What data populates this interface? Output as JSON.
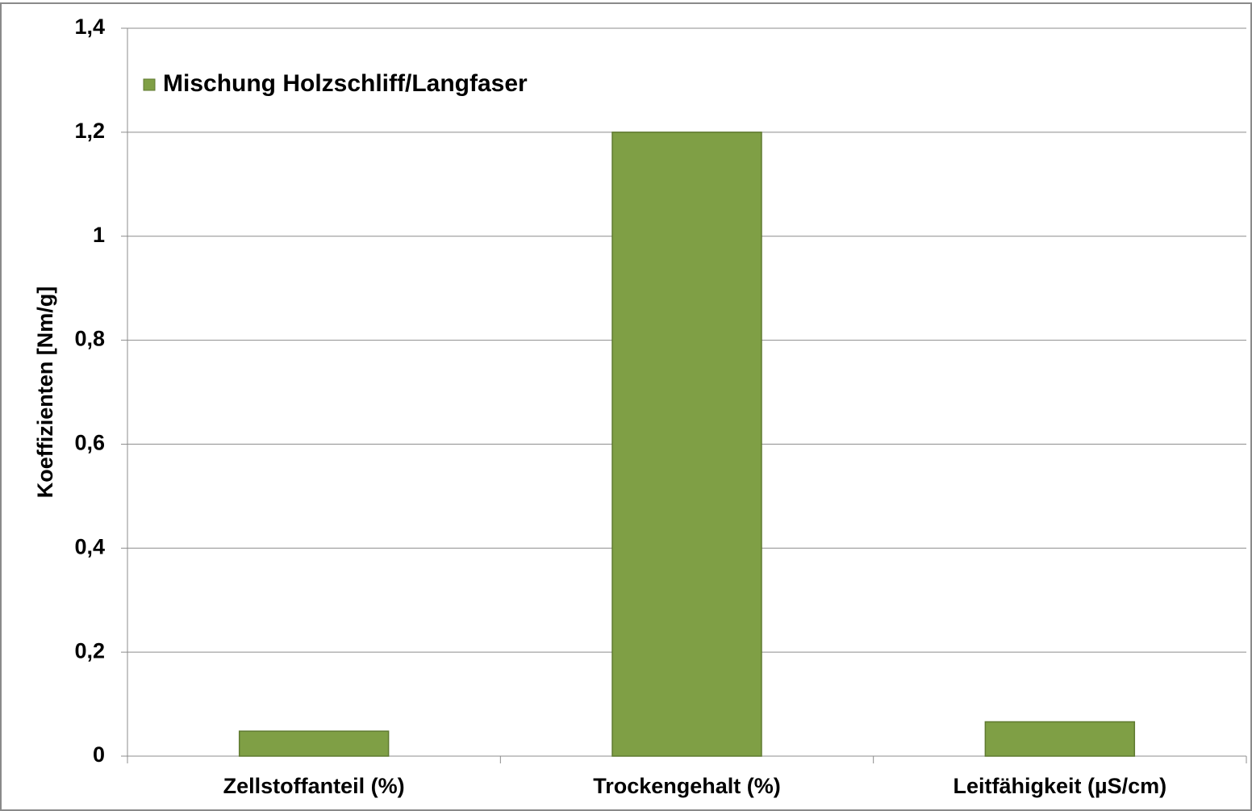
{
  "chart_data": {
    "type": "bar",
    "y_label": "Koeffizienten [Nm/g]",
    "categories": [
      "Zellstoffanteil (%)",
      "Trockengehalt (%)",
      "Leitfähigkeit (µS/cm)"
    ],
    "series": [
      {
        "name": "Mischung Holzschliff/Langfaser",
        "color": "#7f9f45",
        "values": [
          0.048,
          1.2,
          0.066
        ]
      }
    ],
    "ylim": [
      0,
      1.4
    ],
    "yticks": [
      0,
      {
        "value": 0.2,
        "label": "0,2"
      },
      {
        "value": 0.4,
        "label": "0,4"
      },
      {
        "value": 0.6,
        "label": "0,6"
      },
      {
        "value": 0.8,
        "label": "0,8"
      },
      1,
      {
        "value": 1.2,
        "label": "1,2"
      },
      {
        "value": 1.4,
        "label": "1,4"
      }
    ],
    "grid": true,
    "legend": "top-left"
  }
}
